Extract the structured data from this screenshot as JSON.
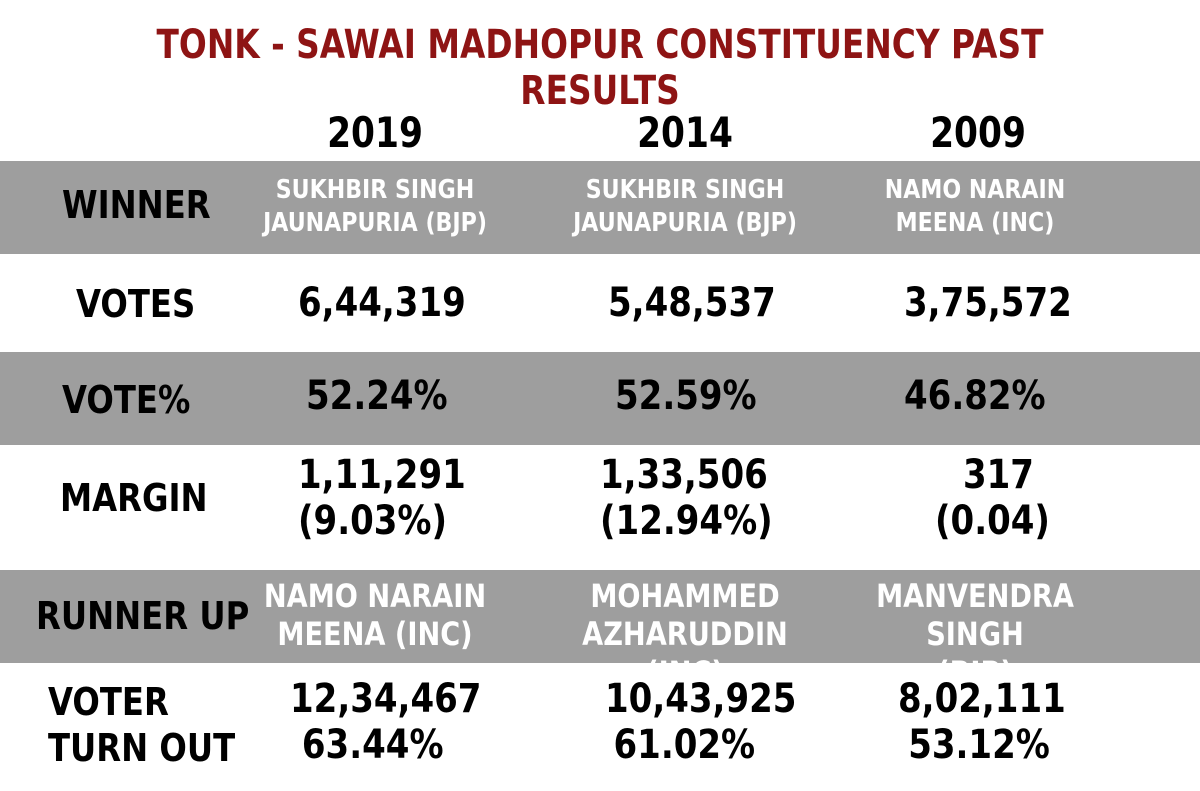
{
  "title": "TONK - SAWAI MADHOPUR CONSTITUENCY PAST RESULTS",
  "years": [
    "2019",
    "2014",
    "2009"
  ],
  "labels": {
    "winner": "WINNER",
    "votes": "VOTES",
    "vote_pct": "VOTE%",
    "margin": "MARGIN",
    "runner_up": "RUNNER UP",
    "turnout_1": "VOTER",
    "turnout_2": "TURN OUT"
  },
  "rows": {
    "winner": [
      [
        "SUKHBIR SINGH",
        "JAUNAPURIA (BJP)"
      ],
      [
        "SUKHBIR SINGH",
        "JAUNAPURIA (BJP)"
      ],
      [
        "NAMO NARAIN",
        "MEENA (INC)"
      ]
    ],
    "votes": [
      "6,44,319",
      "5,48,537",
      "3,75,572"
    ],
    "vote_pct": [
      "52.24%",
      "52.59%",
      "46.82%"
    ],
    "margin": [
      [
        "1,11,291",
        "(9.03%)"
      ],
      [
        "1,33,506",
        "(12.94%)"
      ],
      [
        "317",
        "(0.04)"
      ]
    ],
    "runner_up": [
      [
        "NAMO NARAIN",
        "MEENA (INC)"
      ],
      [
        "MOHAMMED",
        "AZHARUDDIN (INC)"
      ],
      [
        "MANVENDRA SINGH",
        "(BJP)"
      ]
    ],
    "turnout": [
      [
        "12,34,467",
        "63.44%"
      ],
      [
        "10,43,925",
        "61.02%"
      ],
      [
        "8,02,111",
        "53.12%"
      ]
    ]
  },
  "colors": {
    "title": "#8e1414",
    "band": "#9e9e9e",
    "band_text": "#ffffff"
  }
}
